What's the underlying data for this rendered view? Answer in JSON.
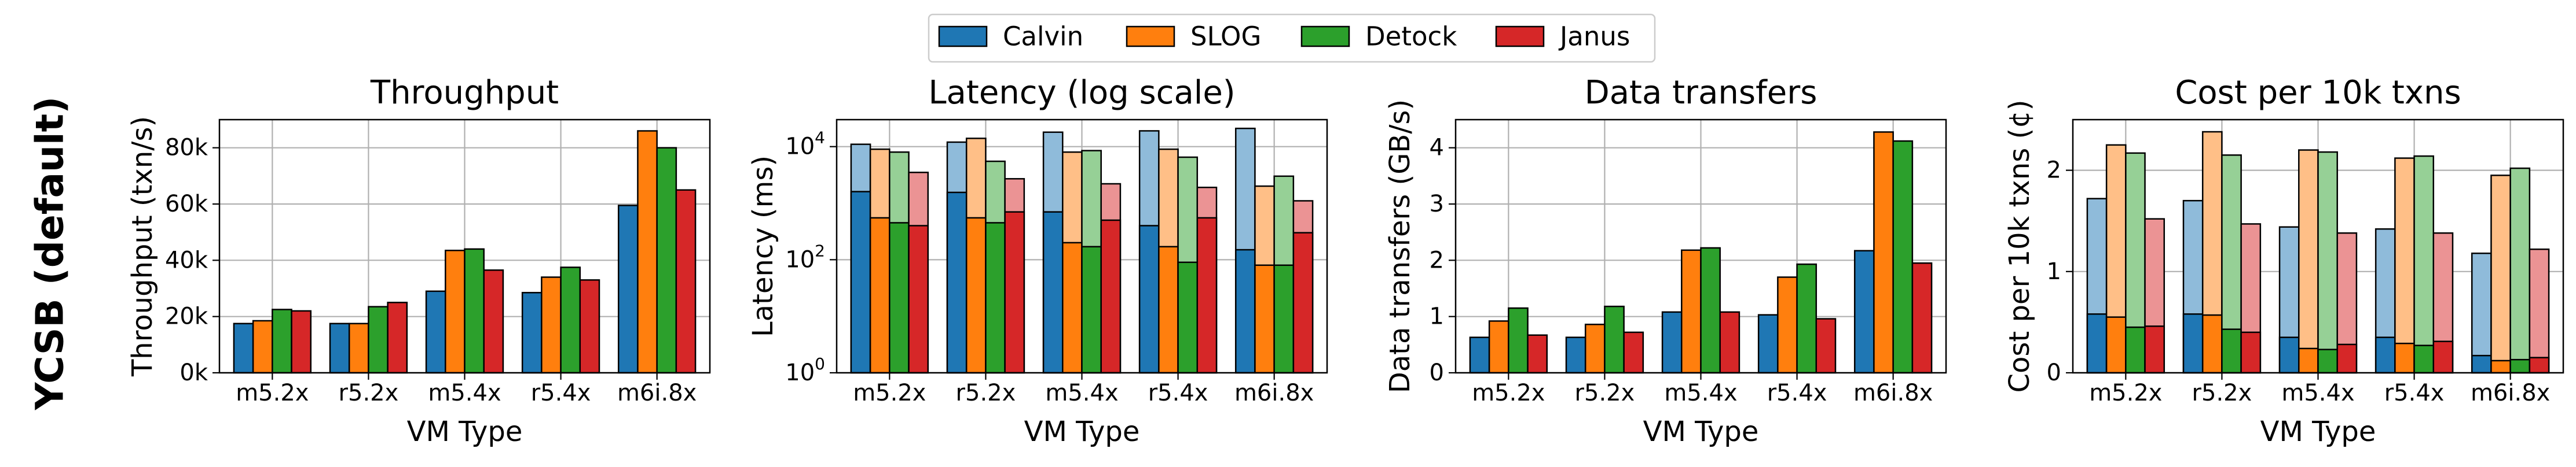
{
  "figure": {
    "row_label": "YCSB (default)",
    "legend": [
      {
        "name": "Calvin",
        "color": "#1f77b4"
      },
      {
        "name": "SLOG",
        "color": "#ff7f0e"
      },
      {
        "name": "Detock",
        "color": "#2ca02c"
      },
      {
        "name": "Janus",
        "color": "#d62728"
      }
    ]
  },
  "chart_data": [
    {
      "type": "bar",
      "title": "Throughput",
      "xlabel": "VM Type",
      "ylabel": "Throughput (txn/s)",
      "ylim": [
        0,
        90000
      ],
      "yticks": [
        0,
        20000,
        40000,
        60000,
        80000
      ],
      "ytick_labels": [
        "0k",
        "20k",
        "40k",
        "60k",
        "80k"
      ],
      "grid": true,
      "categories": [
        "m5.2x",
        "r5.2x",
        "m5.4x",
        "r5.4x",
        "m6i.8x"
      ],
      "series": [
        {
          "name": "Calvin",
          "values": [
            17500,
            17500,
            29000,
            28500,
            59500
          ]
        },
        {
          "name": "SLOG",
          "values": [
            18500,
            17500,
            43500,
            34000,
            86000
          ]
        },
        {
          "name": "Detock",
          "values": [
            22500,
            23500,
            44000,
            37500,
            80000
          ]
        },
        {
          "name": "Janus",
          "values": [
            22000,
            25000,
            36500,
            33000,
            65000
          ]
        }
      ]
    },
    {
      "type": "bar",
      "title": "Latency (log scale)",
      "xlabel": "VM Type",
      "ylabel": "Latency (ms)",
      "log_scale": true,
      "ylim": [
        1,
        30000
      ],
      "yticks": [
        1,
        100,
        10000
      ],
      "ytick_labels": [
        "10",
        "10",
        "10"
      ],
      "ytick_exponents": [
        "0",
        "2",
        "4"
      ],
      "grid": true,
      "stacked_overlay": "dark = lower value, light = upper value",
      "categories": [
        "m5.2x",
        "r5.2x",
        "m5.4x",
        "r5.4x",
        "m6i.8x"
      ],
      "series": [
        {
          "name": "Calvin",
          "lower": [
            1600,
            1550,
            700,
            400,
            150
          ],
          "upper": [
            11000,
            12000,
            18000,
            19000,
            21000
          ]
        },
        {
          "name": "SLOG",
          "lower": [
            550,
            550,
            200,
            170,
            80
          ],
          "upper": [
            9000,
            14000,
            8000,
            9000,
            2000
          ]
        },
        {
          "name": "Detock",
          "lower": [
            450,
            450,
            170,
            90,
            80
          ],
          "upper": [
            8000,
            5500,
            8500,
            6500,
            3000
          ]
        },
        {
          "name": "Janus",
          "lower": [
            400,
            700,
            500,
            550,
            300
          ],
          "upper": [
            3500,
            2700,
            2200,
            1900,
            1100
          ]
        }
      ]
    },
    {
      "type": "bar",
      "title": "Data transfers",
      "xlabel": "VM Type",
      "ylabel": "Data transfers (GB/s)",
      "ylim": [
        0,
        4.5
      ],
      "yticks": [
        0,
        1,
        2,
        3,
        4
      ],
      "ytick_labels": [
        "0",
        "1",
        "2",
        "3",
        "4"
      ],
      "grid": true,
      "categories": [
        "m5.2x",
        "r5.2x",
        "m5.4x",
        "r5.4x",
        "m6i.8x"
      ],
      "series": [
        {
          "name": "Calvin",
          "values": [
            0.63,
            0.63,
            1.08,
            1.03,
            2.17
          ]
        },
        {
          "name": "SLOG",
          "values": [
            0.92,
            0.86,
            2.18,
            1.7,
            4.28
          ]
        },
        {
          "name": "Detock",
          "values": [
            1.15,
            1.18,
            2.22,
            1.93,
            4.12
          ]
        },
        {
          "name": "Janus",
          "values": [
            0.67,
            0.72,
            1.08,
            0.96,
            1.95
          ]
        }
      ]
    },
    {
      "type": "bar",
      "title": "Cost per 10k txns",
      "xlabel": "VM Type",
      "ylabel": "Cost per 10k txns (¢)",
      "ylim": [
        0,
        2.5
      ],
      "yticks": [
        0,
        1,
        2
      ],
      "ytick_labels": [
        "0",
        "1",
        "2"
      ],
      "grid": true,
      "stacked_overlay": "dark = lower value, light = upper value",
      "categories": [
        "m5.2x",
        "r5.2x",
        "m5.4x",
        "r5.4x",
        "m6i.8x"
      ],
      "series": [
        {
          "name": "Calvin",
          "lower": [
            0.58,
            0.58,
            0.35,
            0.35,
            0.17
          ],
          "upper": [
            1.72,
            1.7,
            1.44,
            1.42,
            1.18
          ]
        },
        {
          "name": "SLOG",
          "lower": [
            0.55,
            0.57,
            0.24,
            0.29,
            0.12
          ],
          "upper": [
            2.25,
            2.38,
            2.2,
            2.12,
            1.95
          ]
        },
        {
          "name": "Detock",
          "lower": [
            0.45,
            0.43,
            0.23,
            0.27,
            0.13
          ],
          "upper": [
            2.17,
            2.15,
            2.18,
            2.14,
            2.02
          ]
        },
        {
          "name": "Janus",
          "lower": [
            0.46,
            0.4,
            0.28,
            0.31,
            0.15
          ],
          "upper": [
            1.52,
            1.47,
            1.38,
            1.38,
            1.22
          ]
        }
      ]
    }
  ]
}
